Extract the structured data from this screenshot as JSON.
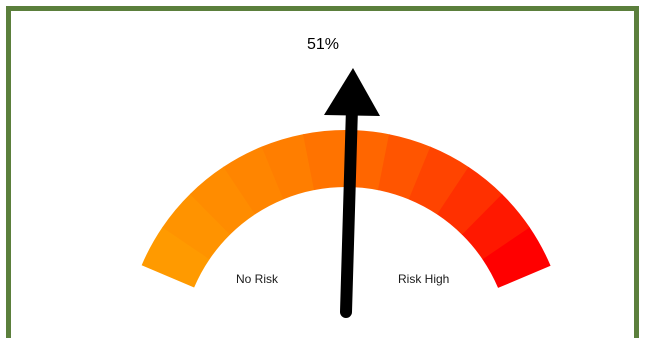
{
  "gauge": {
    "value_label": "51%",
    "value_fraction": 0.51,
    "min_label": "No Risk",
    "max_label": "Risk High",
    "segment_colors": [
      "#ff9a00",
      "#ff9300",
      "#ff8c00",
      "#ff8500",
      "#ff7e00",
      "#ff7300",
      "#ff6600",
      "#ff5500",
      "#ff4400",
      "#ff3000",
      "#ff1800",
      "#ff0000"
    ],
    "frame_color": "#5b7f3c",
    "needle_color": "#000000"
  }
}
